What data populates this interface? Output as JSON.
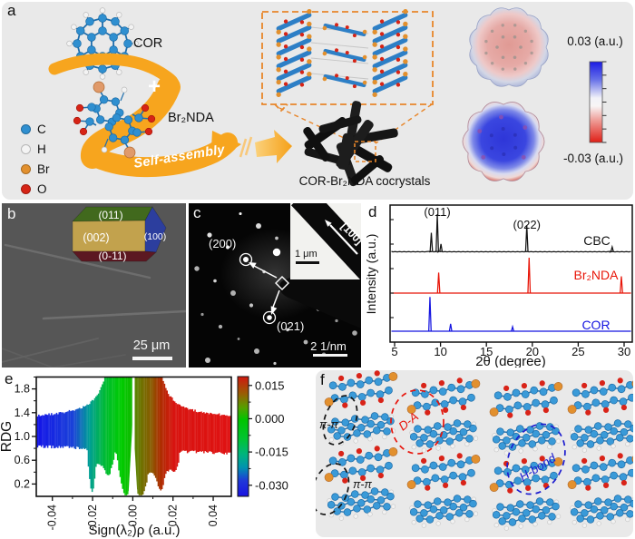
{
  "figure": {
    "panels": {
      "a": {
        "label": "a",
        "cor_label": "COR",
        "br2nda_label": "Br₂NDA",
        "plus": "+",
        "self_assembly": "Self-assembly",
        "cocrystals_label": "COR-Br₂NDA cocrystals",
        "esp_max_label": "0.03 (a.u.)",
        "esp_min_label": "-0.03 (a.u.)",
        "legend": [
          {
            "symbol": "C",
            "color": "#2f8fd0"
          },
          {
            "symbol": "H",
            "color": "#f4f4f4"
          },
          {
            "symbol": "Br",
            "color": "#e2902e"
          },
          {
            "symbol": "O",
            "color": "#d62416"
          }
        ]
      },
      "b": {
        "label": "b",
        "facets": [
          {
            "text": "(011)",
            "color": "#41691d"
          },
          {
            "text": "(002)",
            "color": "#c2a24d"
          },
          {
            "text": "(100)",
            "color": "#2c3e9e"
          },
          {
            "text": "(0-11)",
            "color": "#5c1822"
          }
        ],
        "scalebar_label": "25 μm"
      },
      "c": {
        "label": "c",
        "spot1": "(200)",
        "spot2": "(021)",
        "zone_axis": "[100]",
        "inset_scalebar_label": "1 μm",
        "scalebar_label": "2 1/nm"
      },
      "d": {
        "label": "d"
      },
      "e": {
        "label": "e"
      },
      "f": {
        "label": "f",
        "annotations": [
          {
            "text": "π-π",
            "color": "#151515"
          },
          {
            "text": "D-A",
            "color": "#e8150c"
          },
          {
            "text": "π-π",
            "color": "#151515"
          },
          {
            "text": "H-bond",
            "color": "#1c1ccf"
          }
        ]
      }
    }
  },
  "chart_data": [
    {
      "type": "line",
      "name": "pxrd",
      "xlabel": "2θ (degree)",
      "ylabel": "Intensity (a.u.)",
      "xlim": [
        4.5,
        31.5
      ],
      "xticks": [
        5,
        10,
        15,
        20,
        25,
        30
      ],
      "peak_labels": [
        {
          "text": "(011)",
          "x": 9.65
        },
        {
          "text": "(022)",
          "x": 19.4
        }
      ],
      "series": [
        {
          "name": "CBC",
          "color": "#151515",
          "row": 2,
          "peaks": [
            [
              9.0,
              0.5
            ],
            [
              9.65,
              1.0
            ],
            [
              10.05,
              0.2
            ],
            [
              19.4,
              0.7
            ],
            [
              28.7,
              0.12
            ]
          ]
        },
        {
          "name": "Br₂NDA",
          "color": "#e81508",
          "row": 1,
          "peaks": [
            [
              9.8,
              0.55
            ],
            [
              19.65,
              0.95
            ],
            [
              29.7,
              0.45
            ]
          ]
        },
        {
          "name": "COR",
          "color": "#1414e0",
          "row": 0,
          "peaks": [
            [
              8.85,
              0.92
            ],
            [
              11.1,
              0.2
            ],
            [
              17.85,
              0.12
            ]
          ]
        }
      ]
    },
    {
      "type": "scatter",
      "name": "rdg",
      "xlabel": "Sign(λ₂)ρ (a.u.)",
      "ylabel": "RDG",
      "xlim": [
        -0.048,
        0.049
      ],
      "ylim": [
        0,
        2.0
      ],
      "xticks": [
        -0.04,
        -0.02,
        0,
        0.02,
        0.04
      ],
      "yticks": [
        0.2,
        0.6,
        1.0,
        1.4,
        1.8
      ],
      "band": {
        "rdg_top_edge": 1.35,
        "rdg_bottom_edge": 0.8
      },
      "spikes": [
        [
          -0.0205,
          0.0012,
          0.1
        ],
        [
          -0.0165,
          0.0025,
          0.55
        ],
        [
          -0.0125,
          0.0015,
          0.38
        ],
        [
          -0.0035,
          0.0022,
          0.02
        ],
        [
          0.0035,
          0.0025,
          0.02
        ],
        [
          0.0085,
          0.0015,
          0.4
        ],
        [
          0.0135,
          0.0018,
          0.1
        ],
        [
          0.0165,
          0.003,
          0.42
        ],
        [
          0.0205,
          0.0012,
          0.42
        ]
      ],
      "colorbar": {
        "ticks": [
          "0.015",
          "0.000",
          "-0.015",
          "-0.030"
        ],
        "top_value": 0.019,
        "bottom_value": -0.035
      }
    }
  ]
}
